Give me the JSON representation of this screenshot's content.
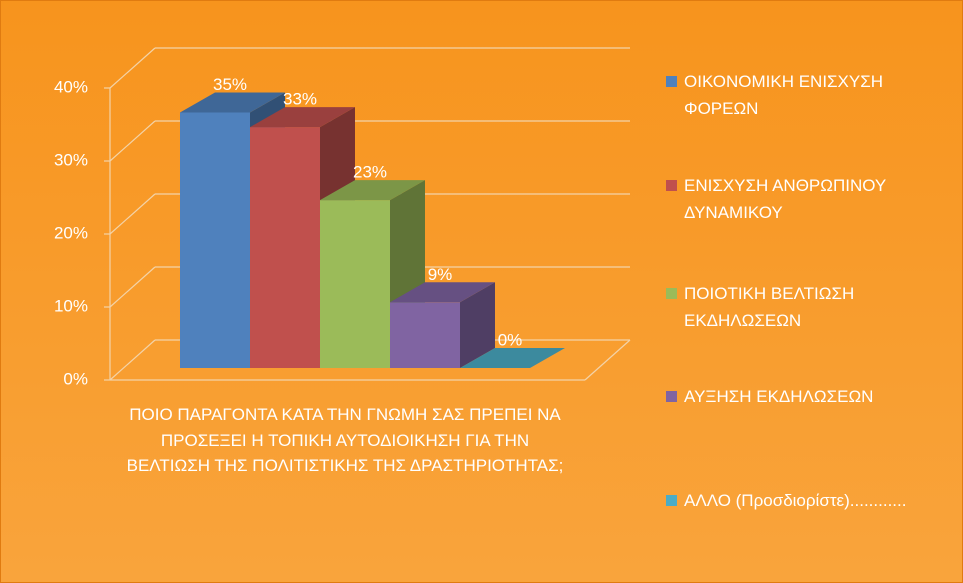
{
  "chart_data": {
    "type": "bar",
    "categories": [
      "ΠΟΙΟ ΠΑΡΑΓΟΝΤΑ ΚΑΤΑ ΤΗΝ ΓΝΩΜΗ ΣΑΣ ΠΡΕΠΕΙ ΝΑ ΠΡΟΣΕΞΕΙ Η ΤΟΠΙΚΗ ΑΥΤΟΔΙΟΙΚΗΣΗ ΓΙΑ ΤΗΝ ΒΕΛΤΙΩΣΗ ΤΗΣ ΠΟΛΙΤΙΣΤΙΚΗΣ ΤΗΣ ΔΡΑΣΤΗΡΙΟΤΗΤΑΣ;"
    ],
    "series": [
      {
        "name": "ΟΙΚΟΝΟΜΙΚΗ ΕΝΙΣΧΥΣΗ ΦΟΡΕΩΝ",
        "color": "#4f81bd",
        "values": [
          35
        ],
        "value_labels": [
          "35%"
        ]
      },
      {
        "name": "ΕΝΙΣΧΥΣΗ ΑΝΘΡΩΠΙΝΟΥ ΔΥΝΑΜΙΚΟΥ",
        "color": "#c0504d",
        "values": [
          33
        ],
        "value_labels": [
          "33%"
        ]
      },
      {
        "name": "ΠΟΙΟΤΙΚΗ ΒΕΛΤΙΩΣΗ ΕΚΔΗΛΩΣΕΩΝ",
        "color": "#9bbb59",
        "values": [
          23
        ],
        "value_labels": [
          "23%"
        ]
      },
      {
        "name": "ΑΥΞΗΣΗ ΕΚΔΗΛΩΣΕΩΝ",
        "color": "#8064a2",
        "values": [
          9
        ],
        "value_labels": [
          "9%"
        ]
      },
      {
        "name": "ΑΛΛΟ (Προσδιορίστε)............",
        "color": "#4bacc6",
        "values": [
          0
        ],
        "value_labels": [
          "0%"
        ]
      }
    ],
    "ylim": [
      0,
      40
    ],
    "yticks": [
      {
        "value": 0,
        "label": "0%"
      },
      {
        "value": 10,
        "label": "10%"
      },
      {
        "value": 20,
        "label": "20%"
      },
      {
        "value": 30,
        "label": "30%"
      },
      {
        "value": 40,
        "label": "40%"
      }
    ],
    "grid": true,
    "legend": "right"
  }
}
